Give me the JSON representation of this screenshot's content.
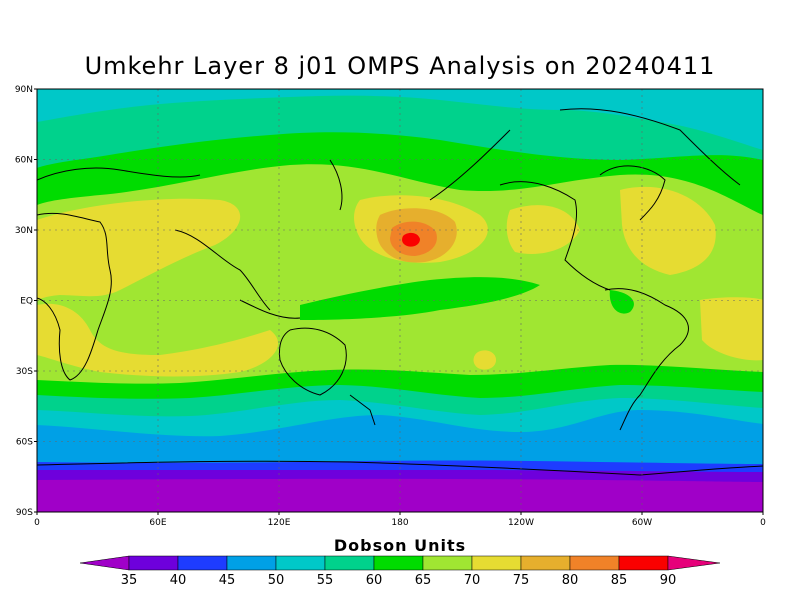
{
  "title": "Umkehr Layer 8 j01 OMPS Analysis on 20240411",
  "map": {
    "lat_ticks": [
      {
        "value": 90,
        "label": "90N"
      },
      {
        "value": 60,
        "label": "60N"
      },
      {
        "value": 30,
        "label": "30N"
      },
      {
        "value": 0,
        "label": "EQ"
      },
      {
        "value": -30,
        "label": "30S"
      },
      {
        "value": -60,
        "label": "60S"
      },
      {
        "value": -90,
        "label": "90S"
      }
    ],
    "lon_ticks": [
      {
        "value": 0,
        "label": "0"
      },
      {
        "value": 60,
        "label": "60E"
      },
      {
        "value": 120,
        "label": "120E"
      },
      {
        "value": 180,
        "label": "180"
      },
      {
        "value": 240,
        "label": "120W"
      },
      {
        "value": 300,
        "label": "60W"
      },
      {
        "value": 360,
        "label": "0"
      }
    ]
  },
  "colorbar": {
    "title": "Dobson Units",
    "ticks": [
      "35",
      "40",
      "45",
      "50",
      "55",
      "60",
      "65",
      "70",
      "75",
      "80",
      "85",
      "90"
    ],
    "colors": [
      "#a000c8",
      "#6e00dc",
      "#1e3cff",
      "#00a0e6",
      "#00c8c8",
      "#00d28c",
      "#00dc00",
      "#a0e632",
      "#e6dc32",
      "#e6af2d",
      "#f08228",
      "#fa0000",
      "#e6007a"
    ]
  }
}
